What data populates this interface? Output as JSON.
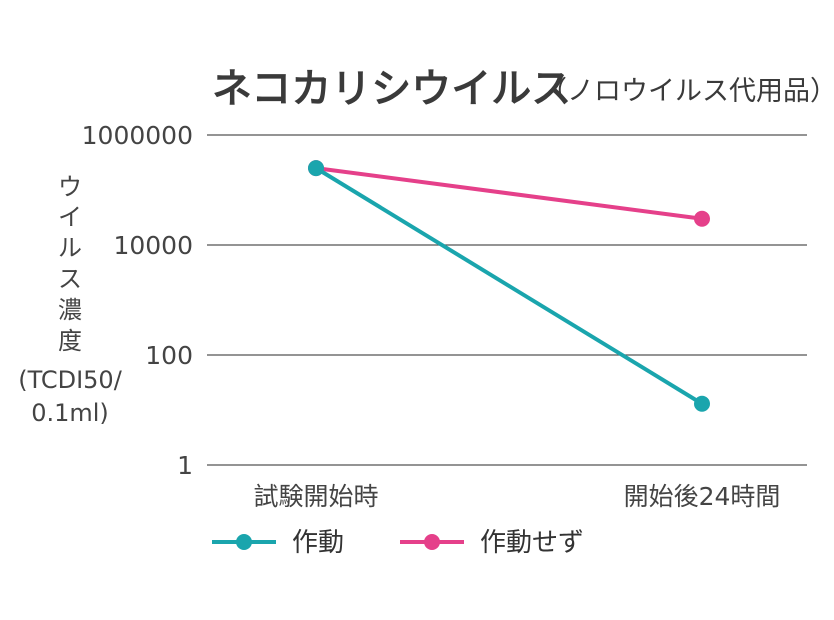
{
  "chart_data": {
    "type": "line",
    "title": "ネコカリシウイルス",
    "subtitle": "（ノロウイルス代用品）",
    "ylabel_lines": [
      "ウ",
      "イ",
      "ル",
      "ス",
      "濃",
      "度",
      "(TCDI50/",
      "0.1ml)"
    ],
    "y_scale": "log",
    "ylim": [
      1,
      1000000
    ],
    "y_ticks": [
      {
        "value": 1000000,
        "label": "1000000"
      },
      {
        "value": 10000,
        "label": "10000"
      },
      {
        "value": 100,
        "label": "100"
      },
      {
        "value": 1,
        "label": "1"
      }
    ],
    "categories": [
      "試験開始時",
      "開始後24時間"
    ],
    "grid": true,
    "legend_position": "bottom-left",
    "series": [
      {
        "name": "作動",
        "color": "#1aa5ad",
        "values": [
          250000,
          13
        ]
      },
      {
        "name": "作動せず",
        "color": "#e5408a",
        "values": [
          250000,
          30000
        ]
      }
    ]
  }
}
